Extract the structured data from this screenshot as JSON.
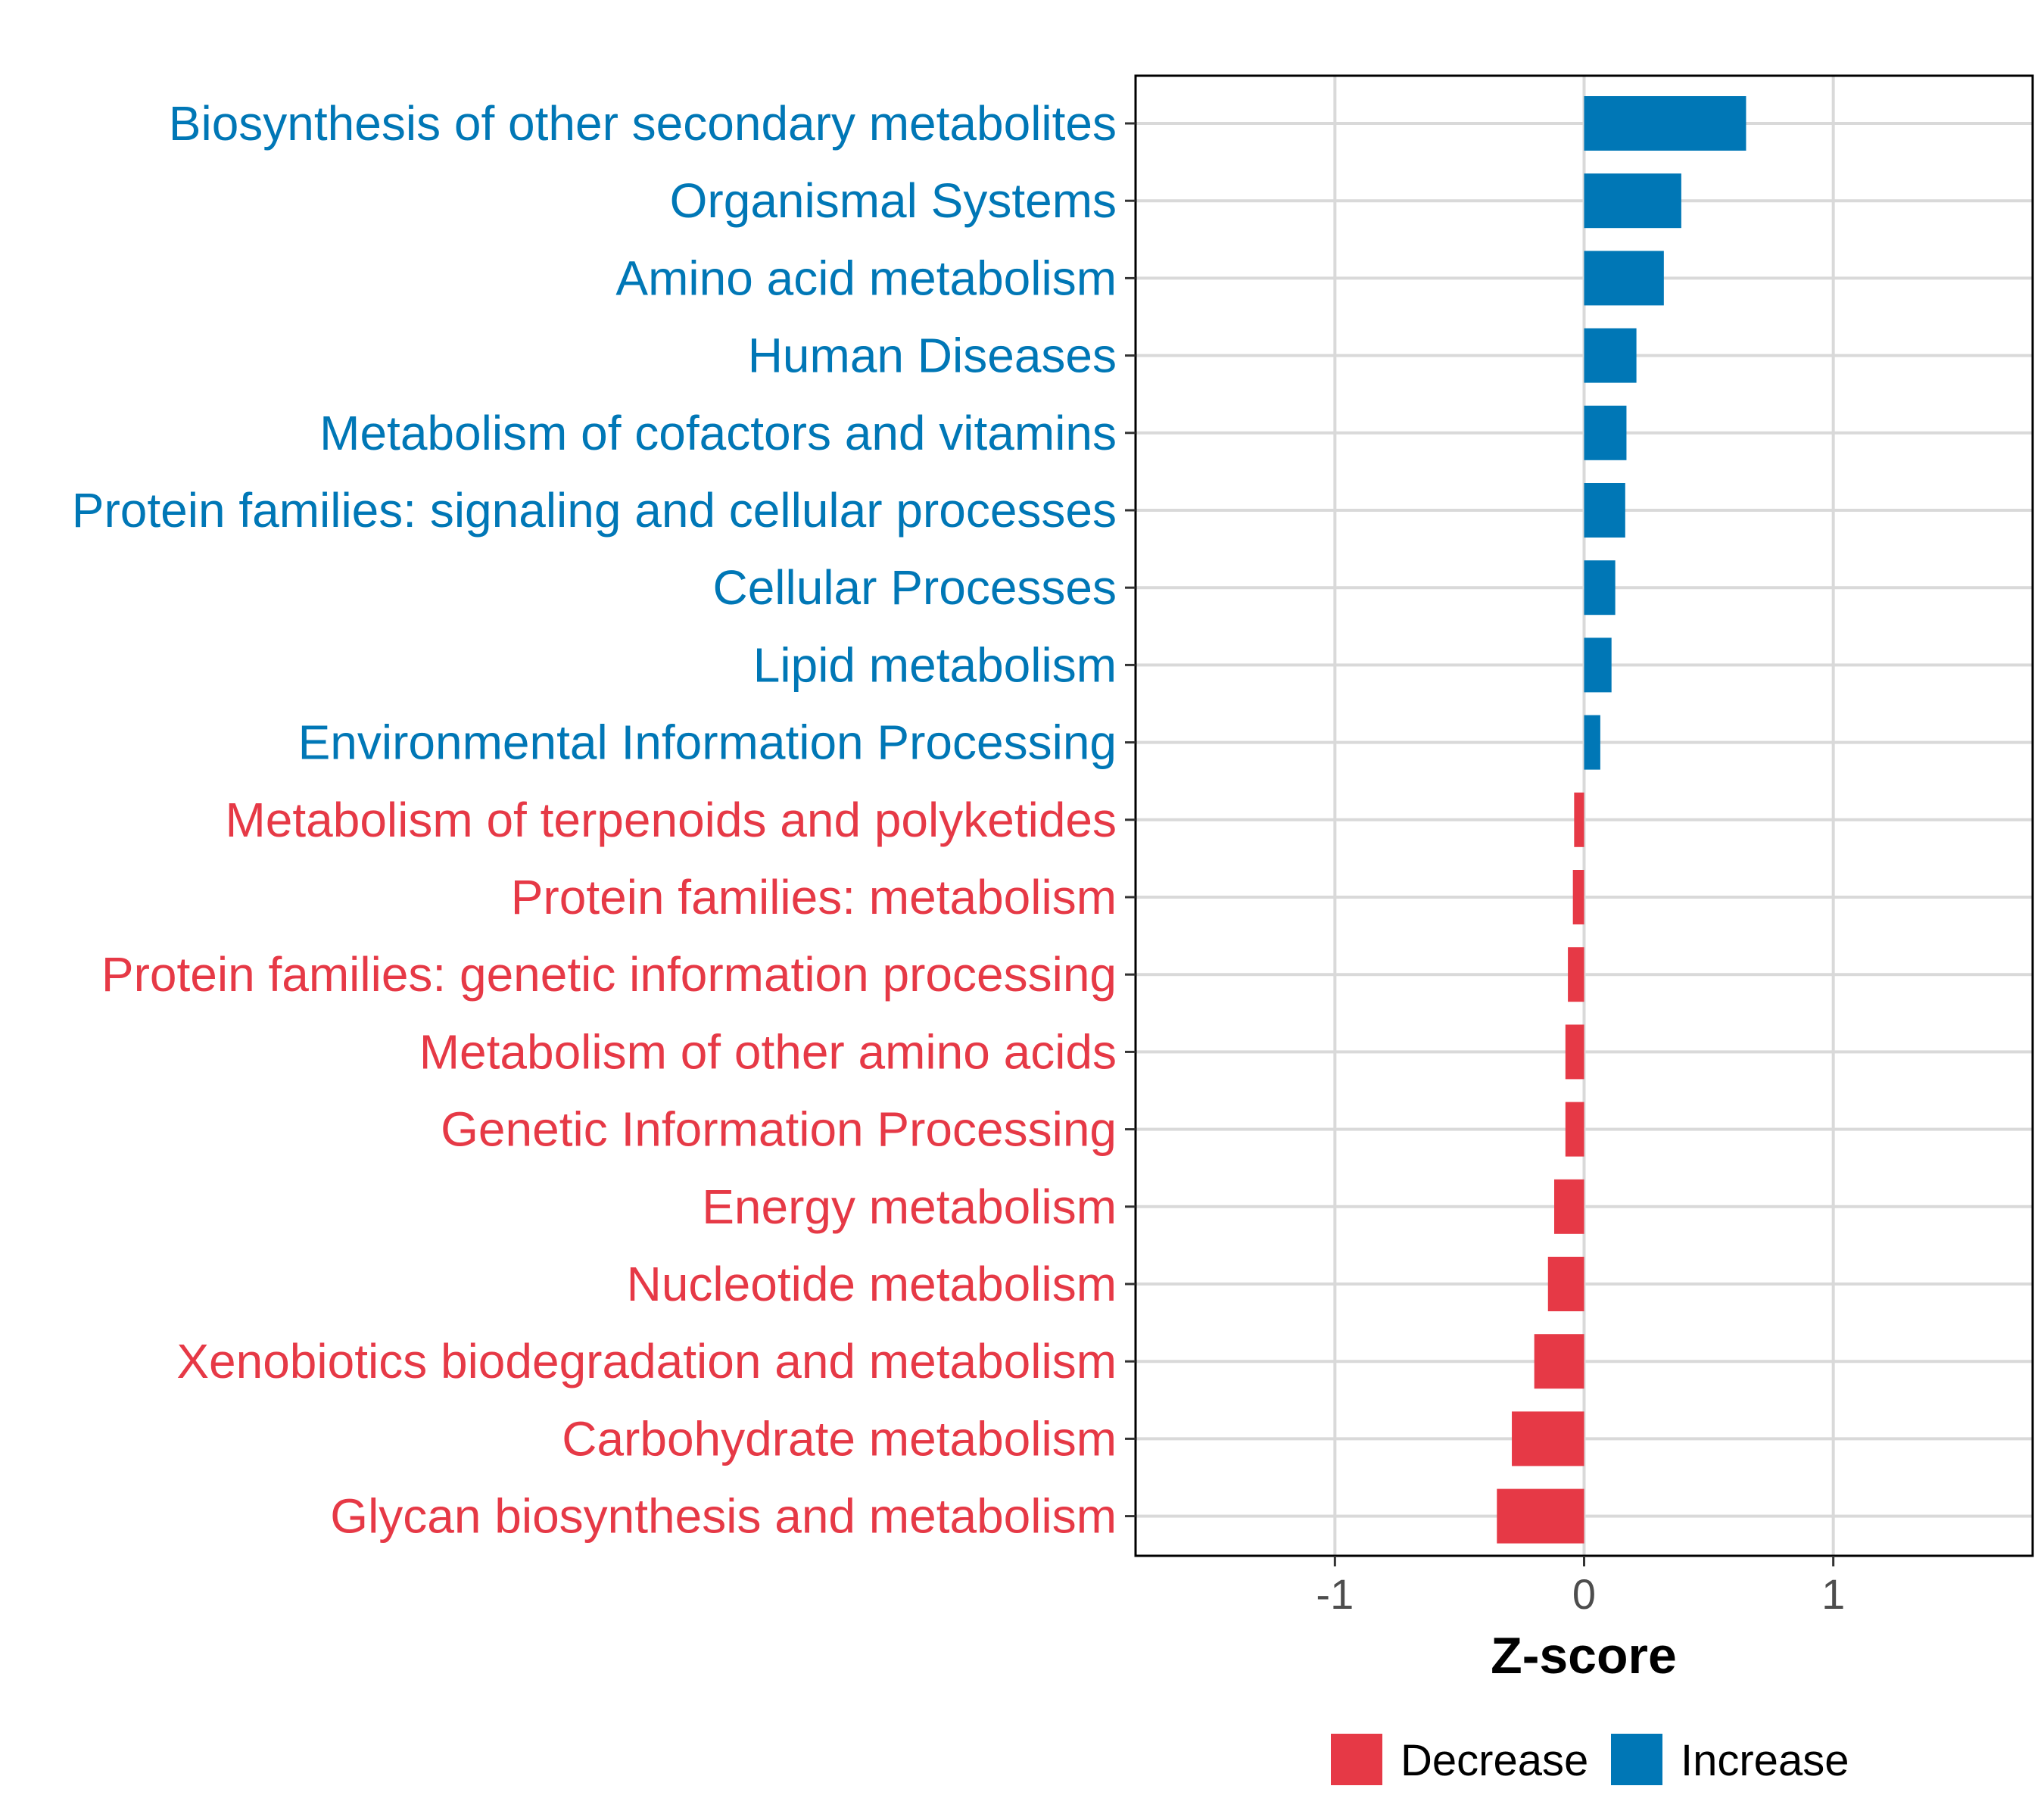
{
  "chart_data": {
    "type": "bar",
    "orientation": "horizontal",
    "title": "",
    "xlabel": "Z-score",
    "ylabel": "",
    "xlim": [
      -1.8,
      1.8
    ],
    "xticks": [
      -1,
      0,
      1
    ],
    "xtick_labels": [
      "-1",
      "0",
      "1"
    ],
    "grid": true,
    "legend_position": "bottom",
    "categories": [
      "Biosynthesis of other secondary metabolites",
      "Organismal Systems",
      "Amino acid metabolism",
      "Human Diseases",
      "Metabolism of cofactors and vitamins",
      "Protein families: signaling and cellular processes",
      "Cellular Processes",
      "Lipid metabolism",
      "Environmental Information Processing",
      "Metabolism of terpenoids and polyketides",
      "Protein families: metabolism",
      "Protein families: genetic information processing",
      "Metabolism of other amino acids",
      "Genetic Information Processing",
      "Energy metabolism",
      "Nucleotide metabolism",
      "Xenobiotics biodegradation and metabolism",
      "Carbohydrate metabolism",
      "Glycan biosynthesis and metabolism"
    ],
    "values": [
      0.65,
      0.39,
      0.32,
      0.21,
      0.17,
      0.165,
      0.125,
      0.11,
      0.065,
      -0.04,
      -0.045,
      -0.065,
      -0.075,
      -0.075,
      -0.12,
      -0.145,
      -0.2,
      -0.29,
      -0.35
    ],
    "groups": [
      "Increase",
      "Increase",
      "Increase",
      "Increase",
      "Increase",
      "Increase",
      "Increase",
      "Increase",
      "Increase",
      "Decrease",
      "Decrease",
      "Decrease",
      "Decrease",
      "Decrease",
      "Decrease",
      "Decrease",
      "Decrease",
      "Decrease",
      "Decrease"
    ],
    "legend": [
      {
        "name": "Decrease",
        "color": "#E63946"
      },
      {
        "name": "Increase",
        "color": "#0077B6"
      }
    ],
    "colors": {
      "Decrease": "#E63946",
      "Increase": "#0077B6"
    }
  }
}
